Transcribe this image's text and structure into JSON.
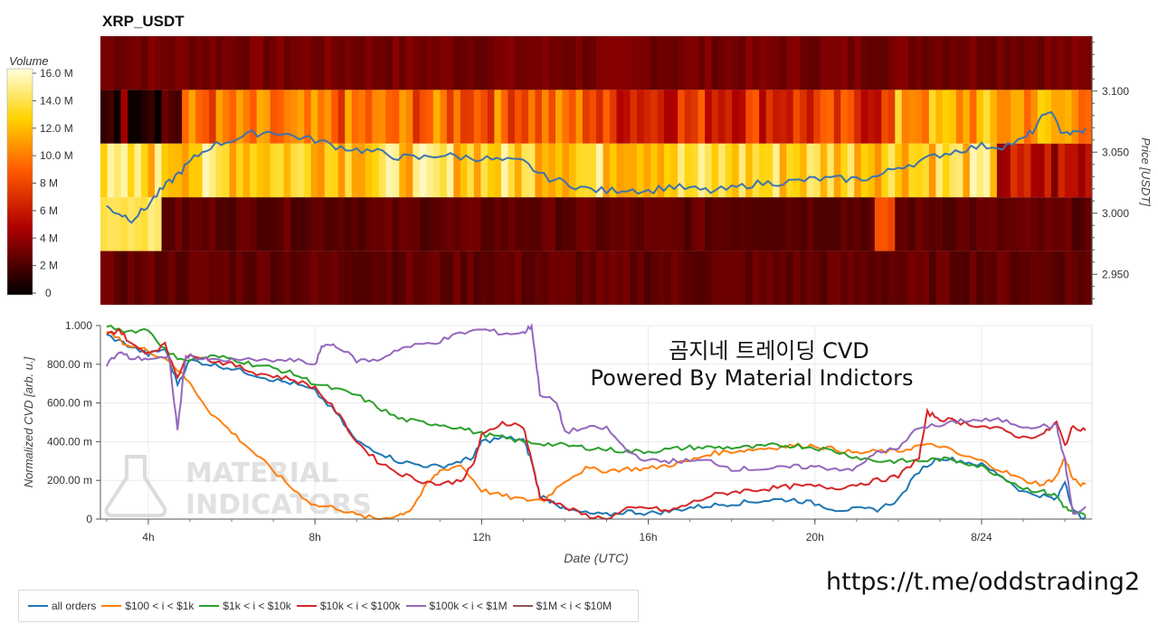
{
  "chart_data": [
    {
      "type": "heatmap",
      "title": "XRP_USDT",
      "colorbar": {
        "label": "Volume",
        "ticks": [
          "16.0 M",
          "14.0 M",
          "12.0 M",
          "10.0 M",
          "8 M",
          "6 M",
          "4 M",
          "2 M",
          "0"
        ],
        "max": 16.0
      },
      "ylabel": "Price [USDT]",
      "yticks": [
        "3.100",
        "3.050",
        "3.000",
        "2.950"
      ],
      "ylim": [
        2.925,
        3.145
      ],
      "price_bands": [
        3.128,
        3.088,
        3.038,
        2.988,
        2.95
      ],
      "band_base_volume_M": [
        3.5,
        9.0,
        12.0,
        3.0,
        2.5
      ],
      "price_line": {
        "x": [
          3.0,
          3.3,
          3.6,
          3.9,
          4.2,
          4.5,
          4.8,
          5.1,
          5.5,
          6.0,
          6.5,
          7.0,
          7.5,
          8.0,
          8.5,
          9.0,
          9.5,
          10.0,
          10.5,
          11.0,
          11.5,
          12.0,
          12.5,
          13.0,
          13.5,
          14.0,
          14.5,
          15.0,
          15.5,
          16.0,
          16.5,
          17.0,
          17.5,
          18.0,
          18.5,
          19.0,
          19.5,
          20.0,
          20.5,
          21.0,
          21.5,
          22.0,
          22.5,
          23.0,
          23.5,
          24.0,
          24.5,
          25.0,
          25.3,
          25.6,
          25.9,
          26.2,
          26.5
        ],
        "y": [
          3.005,
          3.0,
          2.995,
          3.003,
          3.015,
          3.025,
          3.035,
          3.045,
          3.055,
          3.06,
          3.065,
          3.067,
          3.063,
          3.06,
          3.055,
          3.052,
          3.05,
          3.046,
          3.045,
          3.048,
          3.046,
          3.045,
          3.043,
          3.042,
          3.03,
          3.025,
          3.02,
          3.018,
          3.02,
          3.018,
          3.022,
          3.02,
          3.018,
          3.02,
          3.024,
          3.025,
          3.026,
          3.028,
          3.028,
          3.028,
          3.03,
          3.038,
          3.042,
          3.048,
          3.052,
          3.055,
          3.055,
          3.06,
          3.07,
          3.085,
          3.068,
          3.065,
          3.068
        ]
      }
    },
    {
      "type": "line",
      "xlabel": "Date (UTC)",
      "ylabel": "Normalized CVD [arb. u.]",
      "ylim": [
        0,
        1.0
      ],
      "xlim": [
        2.85,
        26.65
      ],
      "xticks": [
        {
          "x": 4,
          "label": "4h"
        },
        {
          "x": 8,
          "label": "8h"
        },
        {
          "x": 12,
          "label": "12h"
        },
        {
          "x": 16,
          "label": "16h"
        },
        {
          "x": 20,
          "label": "20h"
        },
        {
          "x": 24,
          "label": "8/24"
        }
      ],
      "yticks": [
        {
          "v": 1.0,
          "label": "1.000"
        },
        {
          "v": 0.8,
          "label": "800.00 m"
        },
        {
          "v": 0.6,
          "label": "600.00 m"
        },
        {
          "v": 0.4,
          "label": "400.00 m"
        },
        {
          "v": 0.2,
          "label": "200.00 m"
        },
        {
          "v": 0,
          "label": "0"
        }
      ],
      "series": [
        {
          "name": "all orders",
          "color": "#1f77b4",
          "x": [
            3.0,
            3.5,
            4.0,
            4.4,
            4.7,
            5.0,
            5.5,
            6.0,
            6.5,
            7.0,
            7.5,
            8.0,
            8.5,
            9.0,
            9.5,
            10.0,
            10.5,
            11.0,
            11.5,
            11.8,
            12.0,
            12.5,
            13.0,
            13.2,
            13.4,
            13.8,
            14.0,
            14.5,
            15.0,
            15.5,
            16.0,
            16.5,
            17.0,
            17.5,
            18.0,
            18.5,
            19.0,
            19.5,
            20.0,
            20.5,
            21.0,
            21.5,
            22.0,
            22.5,
            23.0,
            23.5,
            24.0,
            24.5,
            25.0,
            25.5,
            25.8,
            26.0,
            26.2,
            26.5
          ],
          "y": [
            0.95,
            0.9,
            0.85,
            0.88,
            0.7,
            0.82,
            0.8,
            0.78,
            0.75,
            0.72,
            0.7,
            0.66,
            0.55,
            0.4,
            0.35,
            0.3,
            0.28,
            0.27,
            0.3,
            0.32,
            0.4,
            0.42,
            0.41,
            0.3,
            0.12,
            0.08,
            0.05,
            0.03,
            0.02,
            0.04,
            0.03,
            0.04,
            0.06,
            0.07,
            0.08,
            0.09,
            0.1,
            0.1,
            0.08,
            0.05,
            0.05,
            0.05,
            0.1,
            0.25,
            0.32,
            0.3,
            0.28,
            0.22,
            0.14,
            0.12,
            0.1,
            0.2,
            0.04,
            0.0
          ]
        },
        {
          "name": "$100 < i < $1k",
          "color": "#ff7f0e",
          "x": [
            3.0,
            3.5,
            4.0,
            4.5,
            5.0,
            5.5,
            6.0,
            6.5,
            7.0,
            7.5,
            8.0,
            8.5,
            9.0,
            9.5,
            10.0,
            10.3,
            10.7,
            11.0,
            11.5,
            12.0,
            12.5,
            13.0,
            13.5,
            14.0,
            14.5,
            15.0,
            15.5,
            16.0,
            16.5,
            17.0,
            17.5,
            18.0,
            18.5,
            19.0,
            19.5,
            20.0,
            20.5,
            21.0,
            21.5,
            22.0,
            22.5,
            23.0,
            23.5,
            24.0,
            24.5,
            25.0,
            25.5,
            25.8,
            26.0,
            26.2,
            26.5
          ],
          "y": [
            0.97,
            0.9,
            0.87,
            0.82,
            0.7,
            0.55,
            0.45,
            0.35,
            0.25,
            0.15,
            0.07,
            0.06,
            0.02,
            0.0,
            0.02,
            0.05,
            0.18,
            0.25,
            0.28,
            0.15,
            0.12,
            0.1,
            0.1,
            0.2,
            0.26,
            0.25,
            0.26,
            0.26,
            0.28,
            0.3,
            0.34,
            0.35,
            0.36,
            0.37,
            0.38,
            0.38,
            0.36,
            0.34,
            0.35,
            0.35,
            0.38,
            0.38,
            0.33,
            0.3,
            0.25,
            0.2,
            0.18,
            0.22,
            0.32,
            0.2,
            0.17
          ]
        },
        {
          "name": "$1k < i < $10k",
          "color": "#2ca02c",
          "x": [
            3.0,
            3.5,
            4.0,
            4.5,
            5.0,
            5.5,
            6.0,
            6.5,
            7.0,
            7.5,
            8.0,
            8.5,
            9.0,
            9.5,
            10.0,
            10.5,
            11.0,
            11.5,
            12.0,
            12.5,
            13.0,
            13.5,
            14.0,
            14.5,
            15.0,
            15.5,
            16.0,
            16.5,
            17.0,
            17.5,
            18.0,
            18.5,
            19.0,
            19.5,
            20.0,
            20.5,
            21.0,
            21.5,
            22.0,
            22.5,
            23.0,
            23.5,
            24.0,
            24.5,
            25.0,
            25.5,
            25.8,
            26.0,
            26.2,
            26.5
          ],
          "y": [
            1.0,
            0.97,
            0.98,
            0.85,
            0.82,
            0.84,
            0.83,
            0.8,
            0.78,
            0.75,
            0.7,
            0.67,
            0.64,
            0.58,
            0.52,
            0.5,
            0.49,
            0.47,
            0.44,
            0.42,
            0.4,
            0.39,
            0.38,
            0.37,
            0.36,
            0.35,
            0.35,
            0.36,
            0.37,
            0.37,
            0.37,
            0.37,
            0.38,
            0.38,
            0.37,
            0.35,
            0.32,
            0.3,
            0.3,
            0.3,
            0.31,
            0.3,
            0.27,
            0.22,
            0.16,
            0.14,
            0.12,
            0.06,
            0.03,
            0.02
          ]
        },
        {
          "name": "$10k < i < $100k",
          "color": "#d62728",
          "x": [
            3.0,
            3.3,
            3.6,
            4.0,
            4.4,
            4.7,
            5.0,
            5.5,
            6.0,
            6.5,
            7.0,
            7.5,
            8.0,
            8.5,
            9.0,
            9.5,
            10.0,
            10.5,
            11.0,
            11.5,
            11.8,
            12.0,
            12.5,
            13.0,
            13.2,
            13.4,
            14.0,
            14.5,
            15.0,
            15.5,
            16.0,
            16.5,
            17.0,
            17.5,
            18.0,
            18.5,
            19.0,
            19.5,
            20.0,
            20.5,
            21.0,
            21.5,
            22.0,
            22.5,
            22.7,
            23.0,
            23.5,
            24.0,
            24.5,
            25.0,
            25.5,
            25.8,
            26.0,
            26.2,
            26.5
          ],
          "y": [
            0.95,
            0.98,
            0.9,
            0.86,
            0.9,
            0.74,
            0.86,
            0.82,
            0.8,
            0.76,
            0.74,
            0.72,
            0.68,
            0.56,
            0.4,
            0.3,
            0.24,
            0.2,
            0.18,
            0.2,
            0.28,
            0.43,
            0.5,
            0.48,
            0.3,
            0.12,
            0.06,
            0.02,
            0.0,
            0.05,
            0.06,
            0.04,
            0.08,
            0.12,
            0.14,
            0.15,
            0.16,
            0.17,
            0.17,
            0.16,
            0.18,
            0.2,
            0.22,
            0.32,
            0.55,
            0.52,
            0.5,
            0.48,
            0.46,
            0.42,
            0.44,
            0.5,
            0.38,
            0.48,
            0.46
          ]
        },
        {
          "name": "$100k < i < $1M",
          "color": "#9467bd",
          "x": [
            3.0,
            3.3,
            3.6,
            4.0,
            4.5,
            4.7,
            4.9,
            5.2,
            5.5,
            6.0,
            7.0,
            7.5,
            8.0,
            8.2,
            8.5,
            9.0,
            9.5,
            10.0,
            10.5,
            11.0,
            11.5,
            12.0,
            12.5,
            13.0,
            13.2,
            13.4,
            13.8,
            14.0,
            14.5,
            15.0,
            15.5,
            16.0,
            16.5,
            17.0,
            17.5,
            18.0,
            18.5,
            19.0,
            19.5,
            20.0,
            20.5,
            21.0,
            21.5,
            22.0,
            22.5,
            23.0,
            23.5,
            24.0,
            24.5,
            25.0,
            25.5,
            25.8,
            26.0,
            26.2,
            26.5
          ],
          "y": [
            0.8,
            0.86,
            0.83,
            0.83,
            0.83,
            0.46,
            0.85,
            0.83,
            0.82,
            0.82,
            0.82,
            0.82,
            0.8,
            0.9,
            0.9,
            0.82,
            0.82,
            0.88,
            0.9,
            0.92,
            0.96,
            0.98,
            0.96,
            0.96,
            1.0,
            0.65,
            0.6,
            0.45,
            0.47,
            0.47,
            0.35,
            0.3,
            0.3,
            0.3,
            0.3,
            0.26,
            0.26,
            0.26,
            0.27,
            0.27,
            0.26,
            0.26,
            0.35,
            0.36,
            0.48,
            0.48,
            0.51,
            0.51,
            0.51,
            0.48,
            0.48,
            0.48,
            0.3,
            0.02,
            0.06
          ]
        },
        {
          "name": "$1M < i < $10M",
          "color": "#8c564b",
          "x": [],
          "y": []
        }
      ]
    }
  ],
  "overlay_title_line1": "곰지네 트레이딩 CVD",
  "overlay_title_line2": "Powered By Material Indictors",
  "watermark_line1": "MATERIAL",
  "watermark_line2": "INDICATORS",
  "link_text": "https://t.me/oddstrading2"
}
